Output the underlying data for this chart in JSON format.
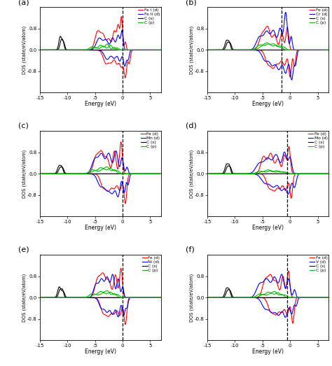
{
  "panels": [
    {
      "label": "a",
      "metal_label": "Fe I (d)",
      "metal2_label": "Fe II (d)",
      "cs_label": "C (s)",
      "cp_label": "C (p)",
      "dashed_x": 0.0
    },
    {
      "label": "b",
      "metal_label": "Fe (d)",
      "metal2_label": "Cr (d)",
      "cs_label": "C (s)",
      "cp_label": "C (p)",
      "dashed_x": -1.5
    },
    {
      "label": "c",
      "metal_label": "Fe (d)",
      "metal2_label": "Mn (d)",
      "cs_label": "C (s)",
      "cp_label": "C (p)",
      "dashed_x": 0.0
    },
    {
      "label": "d",
      "metal_label": "Fe (d)",
      "metal2_label": "Mo (d)",
      "cs_label": "C (s)",
      "cp_label": "C (p)",
      "dashed_x": -0.5
    },
    {
      "label": "e",
      "metal_label": "Fe (d)",
      "metal2_label": "Ni (d)",
      "cs_label": "C (s)",
      "cp_label": "C (p)",
      "dashed_x": 0.0
    },
    {
      "label": "f",
      "metal_label": "Fe (d)",
      "metal2_label": "V (d)",
      "cs_label": "C (s)",
      "cp_label": "C (p)",
      "dashed_x": -0.5
    }
  ],
  "colors": {
    "metal1": "#FF0000",
    "metal2": "#0000FF",
    "cs": "#000000",
    "cp": "#00BB00"
  },
  "xlim": [
    -15,
    7
  ],
  "ylim": [
    -1.6,
    1.6
  ],
  "xlabel": "Energy (eV)",
  "ylabel": "DOS (state/eV/atom)",
  "linewidth": 0.8
}
